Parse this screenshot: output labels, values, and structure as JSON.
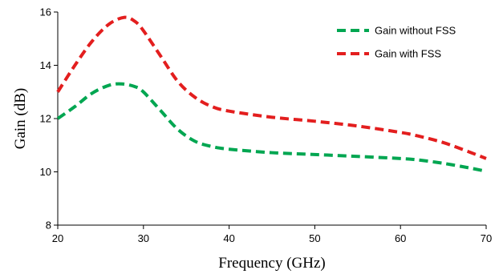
{
  "chart_data": {
    "type": "line",
    "title": "",
    "xlabel": "Frequency (GHz)",
    "ylabel": "Gain (dB)",
    "xlim": [
      20,
      70
    ],
    "ylim": [
      8,
      16
    ],
    "x_ticks": [
      20,
      30,
      40,
      50,
      60,
      70
    ],
    "y_ticks": [
      8,
      10,
      12,
      14,
      16
    ],
    "grid": false,
    "legend_position": "top-right",
    "series": [
      {
        "name": "Gain without FSS",
        "color": "#00A651",
        "line_style": "dashed",
        "x": [
          20,
          22,
          24,
          26,
          27.5,
          29,
          30,
          32,
          34,
          36,
          38,
          40,
          45,
          50,
          55,
          60,
          62,
          65,
          68,
          70
        ],
        "y": [
          12.0,
          12.45,
          12.95,
          13.25,
          13.3,
          13.2,
          13.0,
          12.3,
          11.6,
          11.15,
          10.95,
          10.85,
          10.72,
          10.65,
          10.58,
          10.5,
          10.45,
          10.32,
          10.15,
          10.02
        ]
      },
      {
        "name": "Gain with FSS",
        "color": "#E31E1E",
        "line_style": "dashed",
        "x": [
          20,
          22,
          24,
          26,
          27.8,
          29,
          30,
          32,
          34,
          36,
          38,
          40,
          45,
          50,
          55,
          60,
          62,
          65,
          68,
          70
        ],
        "y": [
          13.0,
          14.0,
          14.9,
          15.55,
          15.8,
          15.65,
          15.3,
          14.35,
          13.4,
          12.8,
          12.45,
          12.28,
          12.05,
          11.9,
          11.72,
          11.48,
          11.35,
          11.1,
          10.75,
          10.5
        ]
      }
    ]
  }
}
